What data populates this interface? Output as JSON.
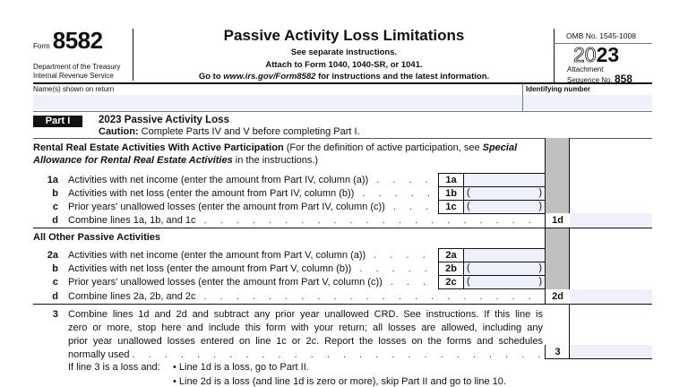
{
  "header": {
    "form_prefix": "Form",
    "form_number": "8582",
    "department": "Department of the Treasury",
    "service": "Internal Revenue Service",
    "title": "Passive Activity Loss Limitations",
    "instructions_1": "See separate instructions.",
    "instructions_2": "Attach to Form 1040, 1040-SR, or 1041.",
    "instructions_3_pre": "Go to ",
    "instructions_3_link": "www.irs.gov/Form8582",
    "instructions_3_post": " for instructions and the latest information.",
    "omb": "OMB No. 1545-1008",
    "year_outline": "20",
    "year_bold": "23",
    "attachment": "Attachment",
    "sequence_label": "Sequence No.",
    "sequence_no": "858"
  },
  "name_row": {
    "name_label": "Name(s) shown on return",
    "id_label": "Identifying number",
    "name_value": "",
    "id_value": ""
  },
  "part1": {
    "badge": "Part I",
    "title": "2023 Passive Activity Loss",
    "caution_label": "Caution:",
    "caution_text": " Complete Parts IV and V before completing Part I."
  },
  "rental": {
    "heading_bold": "Rental Real Estate Activities With Active Participation",
    "heading_text": " (For the definition of active participation, see ",
    "heading_italic1": "Special",
    "heading_italic2": "Allowance for Rental Real Estate Activities",
    "heading_text2": " in the instructions.)"
  },
  "lines1": [
    {
      "num": "1a",
      "text": "Activities with net income (enter the amount from Part IV, column (a))",
      "box": "1a",
      "value": ""
    },
    {
      "num": "b",
      "text": "Activities with net loss (enter the amount from Part IV, column (b))",
      "box": "1b",
      "value": ""
    },
    {
      "num": "c",
      "text": "Prior years' unallowed losses (enter the amount from Part IV, column (c))",
      "box": "1c",
      "value": ""
    },
    {
      "num": "d",
      "text": "Combine lines 1a, 1b, and 1c",
      "box": "1d",
      "value": ""
    }
  ],
  "other_heading": "All Other Passive Activities",
  "lines2": [
    {
      "num": "2a",
      "text": "Activities with net income (enter the amount from Part V, column (a))",
      "box": "2a",
      "value": ""
    },
    {
      "num": "b",
      "text": "Activities with net loss (enter the amount from Part V, column (b))",
      "box": "2b",
      "value": ""
    },
    {
      "num": "c",
      "text": "Prior years' unallowed losses (enter the amount from Part V, column (c))",
      "box": "2c",
      "value": ""
    },
    {
      "num": "d",
      "text": "Combine lines 2a, 2b, and 2c",
      "box": "2d",
      "value": ""
    }
  ],
  "line3": {
    "num": "3",
    "text_1": "Combine lines 1d and 2d and subtract any prior year unallowed CRD. See instructions. If this line is",
    "text_2": "zero or more, stop here and include this form with your return; all losses are allowed, including any",
    "text_3": "prior year unallowed losses entered on line 1c or 2c. Report the losses on the forms and schedules",
    "text_4": "normally used",
    "box": "3",
    "value": "",
    "if_label": "If line 3 is a loss and:",
    "bullet_1": "• Line 1d is a loss, go to Part II.",
    "bullet_2": "• Line 2d is a loss (and line 1d is zero or more), skip Part II and go to line 10."
  },
  "colors": {
    "field_fill": "#eef1fb",
    "shade": "#c0c0c0",
    "ink": "#111111"
  }
}
